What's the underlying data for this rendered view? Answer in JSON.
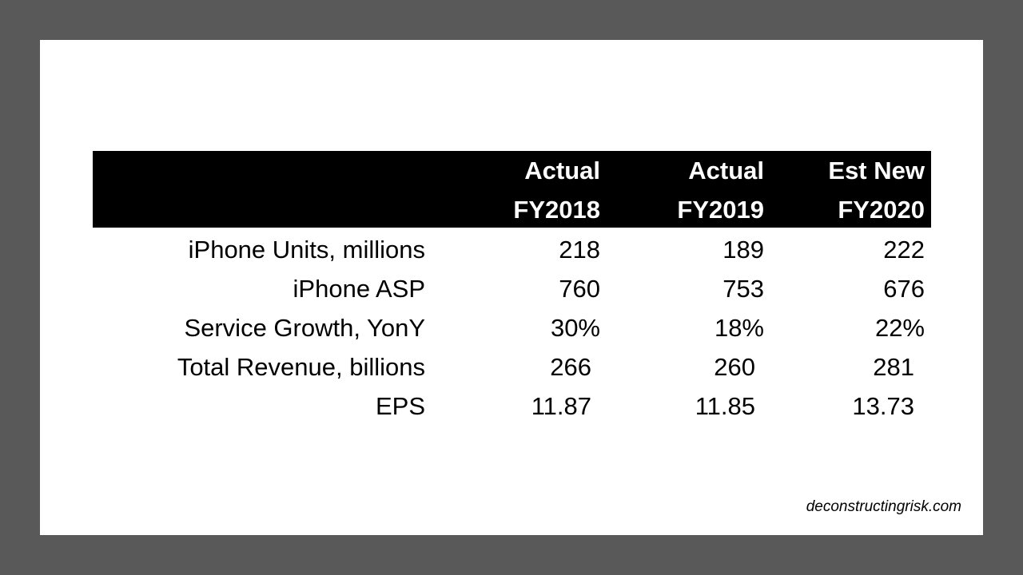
{
  "table": {
    "columns": [
      {
        "line1": "Actual",
        "line2": "FY2018"
      },
      {
        "line1": "Actual",
        "line2": "FY2019"
      },
      {
        "line1": "Est New",
        "line2": "FY2020"
      }
    ],
    "rows": [
      {
        "label": "iPhone Units, millions",
        "values": [
          "218",
          "189",
          "222"
        ]
      },
      {
        "label": "iPhone ASP",
        "values": [
          "760",
          "753",
          "676"
        ]
      },
      {
        "label": "Service Growth, YonY",
        "values": [
          "30%",
          "18%",
          "22%"
        ]
      },
      {
        "label": "Total Revenue, billions",
        "values": [
          "266",
          "260",
          "281"
        ]
      },
      {
        "label": "EPS",
        "values": [
          "11.87",
          "11.85",
          "13.73"
        ]
      }
    ]
  },
  "footer": {
    "text": "deconstructingrisk.com"
  }
}
